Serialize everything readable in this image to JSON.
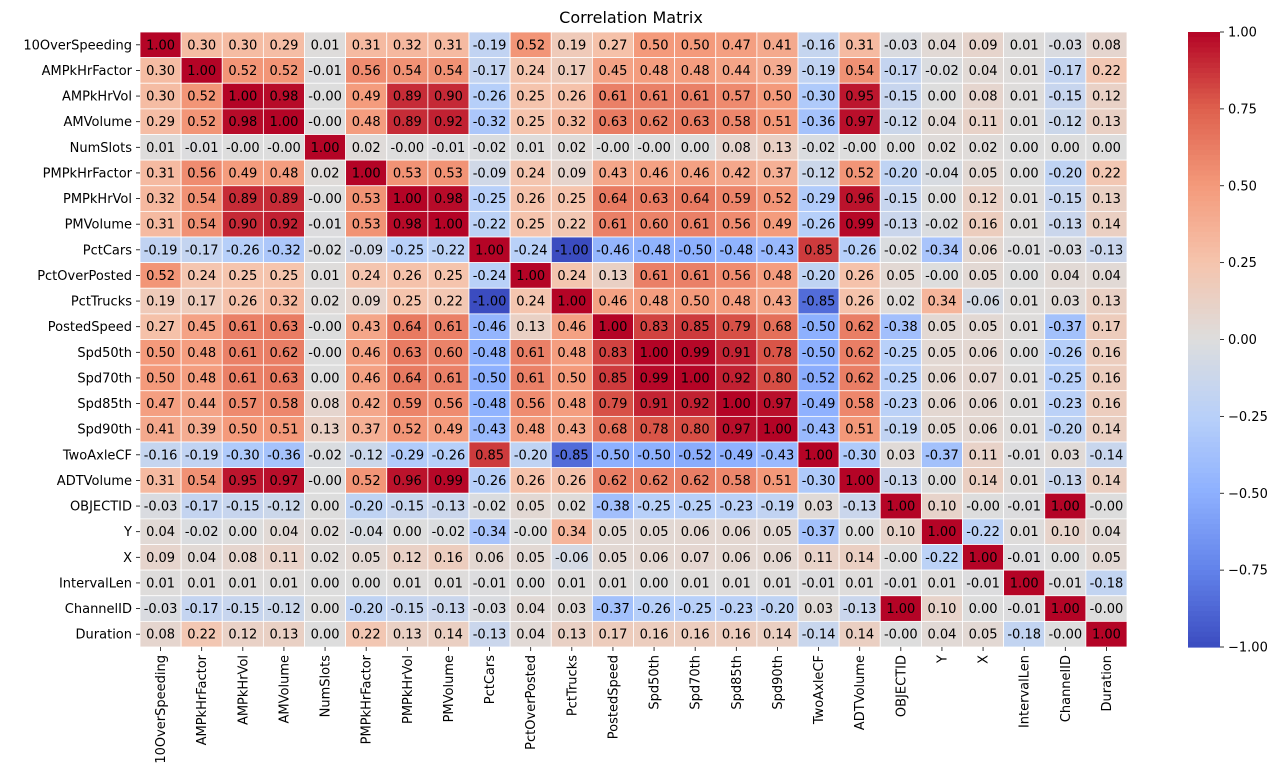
{
  "chart_data": {
    "type": "heatmap",
    "title": "Correlation Matrix",
    "colormap": "coolwarm",
    "vmin": -1.0,
    "vmax": 1.0,
    "cell_border_color": "#ffffff",
    "value_format": "0.00",
    "labels": [
      "10OverSpeeding",
      "AMPkHrFactor",
      "AMPkHrVol",
      "AMVolume",
      "NumSlots",
      "PMPkHrFactor",
      "PMPkHrVol",
      "PMVolume",
      "PctCars",
      "PctOverPosted",
      "PctTrucks",
      "PostedSpeed",
      "Spd50th",
      "Spd70th",
      "Spd85th",
      "Spd90th",
      "TwoAxleCF",
      "ADTVolume",
      "OBJECTID",
      "Y",
      "X",
      "IntervalLen",
      "ChannelID",
      "Duration"
    ],
    "colorbar_ticks": [
      "1.00",
      "0.75",
      "0.50",
      "0.25",
      "0.00",
      "−0.25",
      "−0.50",
      "−0.75",
      "−1.00"
    ],
    "colorbar_tick_values": [
      1.0,
      0.75,
      0.5,
      0.25,
      0.0,
      -0.25,
      -0.5,
      -0.75,
      -1.0
    ],
    "values": [
      [
        "1.00",
        "0.30",
        "0.30",
        "0.29",
        "0.01",
        "0.31",
        "0.32",
        "0.31",
        "-0.19",
        "0.52",
        "0.19",
        "0.27",
        "0.50",
        "0.50",
        "0.47",
        "0.41",
        "-0.16",
        "0.31",
        "-0.03",
        "0.04",
        "0.09",
        "0.01",
        "-0.03",
        "0.08"
      ],
      [
        "0.30",
        "1.00",
        "0.52",
        "0.52",
        "-0.01",
        "0.56",
        "0.54",
        "0.54",
        "-0.17",
        "0.24",
        "0.17",
        "0.45",
        "0.48",
        "0.48",
        "0.44",
        "0.39",
        "-0.19",
        "0.54",
        "-0.17",
        "-0.02",
        "0.04",
        "0.01",
        "-0.17",
        "0.22"
      ],
      [
        "0.30",
        "0.52",
        "1.00",
        "0.98",
        "-0.00",
        "0.49",
        "0.89",
        "0.90",
        "-0.26",
        "0.25",
        "0.26",
        "0.61",
        "0.61",
        "0.61",
        "0.57",
        "0.50",
        "-0.30",
        "0.95",
        "-0.15",
        "0.00",
        "0.08",
        "0.01",
        "-0.15",
        "0.12"
      ],
      [
        "0.29",
        "0.52",
        "0.98",
        "1.00",
        "-0.00",
        "0.48",
        "0.89",
        "0.92",
        "-0.32",
        "0.25",
        "0.32",
        "0.63",
        "0.62",
        "0.63",
        "0.58",
        "0.51",
        "-0.36",
        "0.97",
        "-0.12",
        "0.04",
        "0.11",
        "0.01",
        "-0.12",
        "0.13"
      ],
      [
        "0.01",
        "-0.01",
        "-0.00",
        "-0.00",
        "1.00",
        "0.02",
        "-0.00",
        "-0.01",
        "-0.02",
        "0.01",
        "0.02",
        "-0.00",
        "-0.00",
        "0.00",
        "0.08",
        "0.13",
        "-0.02",
        "-0.00",
        "0.00",
        "0.02",
        "0.02",
        "0.00",
        "0.00",
        "0.00"
      ],
      [
        "0.31",
        "0.56",
        "0.49",
        "0.48",
        "0.02",
        "1.00",
        "0.53",
        "0.53",
        "-0.09",
        "0.24",
        "0.09",
        "0.43",
        "0.46",
        "0.46",
        "0.42",
        "0.37",
        "-0.12",
        "0.52",
        "-0.20",
        "-0.04",
        "0.05",
        "0.00",
        "-0.20",
        "0.22"
      ],
      [
        "0.32",
        "0.54",
        "0.89",
        "0.89",
        "-0.00",
        "0.53",
        "1.00",
        "0.98",
        "-0.25",
        "0.26",
        "0.25",
        "0.64",
        "0.63",
        "0.64",
        "0.59",
        "0.52",
        "-0.29",
        "0.96",
        "-0.15",
        "0.00",
        "0.12",
        "0.01",
        "-0.15",
        "0.13"
      ],
      [
        "0.31",
        "0.54",
        "0.90",
        "0.92",
        "-0.01",
        "0.53",
        "0.98",
        "1.00",
        "-0.22",
        "0.25",
        "0.22",
        "0.61",
        "0.60",
        "0.61",
        "0.56",
        "0.49",
        "-0.26",
        "0.99",
        "-0.13",
        "-0.02",
        "0.16",
        "0.01",
        "-0.13",
        "0.14"
      ],
      [
        "-0.19",
        "-0.17",
        "-0.26",
        "-0.32",
        "-0.02",
        "-0.09",
        "-0.25",
        "-0.22",
        "1.00",
        "-0.24",
        "-1.00",
        "-0.46",
        "-0.48",
        "-0.50",
        "-0.48",
        "-0.43",
        "0.85",
        "-0.26",
        "-0.02",
        "-0.34",
        "0.06",
        "-0.01",
        "-0.03",
        "-0.13"
      ],
      [
        "0.52",
        "0.24",
        "0.25",
        "0.25",
        "0.01",
        "0.24",
        "0.26",
        "0.25",
        "-0.24",
        "1.00",
        "0.24",
        "0.13",
        "0.61",
        "0.61",
        "0.56",
        "0.48",
        "-0.20",
        "0.26",
        "0.05",
        "-0.00",
        "0.05",
        "0.00",
        "0.04",
        "0.04"
      ],
      [
        "0.19",
        "0.17",
        "0.26",
        "0.32",
        "0.02",
        "0.09",
        "0.25",
        "0.22",
        "-1.00",
        "0.24",
        "1.00",
        "0.46",
        "0.48",
        "0.50",
        "0.48",
        "0.43",
        "-0.85",
        "0.26",
        "0.02",
        "0.34",
        "-0.06",
        "0.01",
        "0.03",
        "0.13"
      ],
      [
        "0.27",
        "0.45",
        "0.61",
        "0.63",
        "-0.00",
        "0.43",
        "0.64",
        "0.61",
        "-0.46",
        "0.13",
        "0.46",
        "1.00",
        "0.83",
        "0.85",
        "0.79",
        "0.68",
        "-0.50",
        "0.62",
        "-0.38",
        "0.05",
        "0.05",
        "0.01",
        "-0.37",
        "0.17"
      ],
      [
        "0.50",
        "0.48",
        "0.61",
        "0.62",
        "-0.00",
        "0.46",
        "0.63",
        "0.60",
        "-0.48",
        "0.61",
        "0.48",
        "0.83",
        "1.00",
        "0.99",
        "0.91",
        "0.78",
        "-0.50",
        "0.62",
        "-0.25",
        "0.05",
        "0.06",
        "0.00",
        "-0.26",
        "0.16"
      ],
      [
        "0.50",
        "0.48",
        "0.61",
        "0.63",
        "0.00",
        "0.46",
        "0.64",
        "0.61",
        "-0.50",
        "0.61",
        "0.50",
        "0.85",
        "0.99",
        "1.00",
        "0.92",
        "0.80",
        "-0.52",
        "0.62",
        "-0.25",
        "0.06",
        "0.07",
        "0.01",
        "-0.25",
        "0.16"
      ],
      [
        "0.47",
        "0.44",
        "0.57",
        "0.58",
        "0.08",
        "0.42",
        "0.59",
        "0.56",
        "-0.48",
        "0.56",
        "0.48",
        "0.79",
        "0.91",
        "0.92",
        "1.00",
        "0.97",
        "-0.49",
        "0.58",
        "-0.23",
        "0.06",
        "0.06",
        "0.01",
        "-0.23",
        "0.16"
      ],
      [
        "0.41",
        "0.39",
        "0.50",
        "0.51",
        "0.13",
        "0.37",
        "0.52",
        "0.49",
        "-0.43",
        "0.48",
        "0.43",
        "0.68",
        "0.78",
        "0.80",
        "0.97",
        "1.00",
        "-0.43",
        "0.51",
        "-0.19",
        "0.05",
        "0.06",
        "0.01",
        "-0.20",
        "0.14"
      ],
      [
        "-0.16",
        "-0.19",
        "-0.30",
        "-0.36",
        "-0.02",
        "-0.12",
        "-0.29",
        "-0.26",
        "0.85",
        "-0.20",
        "-0.85",
        "-0.50",
        "-0.50",
        "-0.52",
        "-0.49",
        "-0.43",
        "1.00",
        "-0.30",
        "0.03",
        "-0.37",
        "0.11",
        "-0.01",
        "0.03",
        "-0.14"
      ],
      [
        "0.31",
        "0.54",
        "0.95",
        "0.97",
        "-0.00",
        "0.52",
        "0.96",
        "0.99",
        "-0.26",
        "0.26",
        "0.26",
        "0.62",
        "0.62",
        "0.62",
        "0.58",
        "0.51",
        "-0.30",
        "1.00",
        "-0.13",
        "0.00",
        "0.14",
        "0.01",
        "-0.13",
        "0.14"
      ],
      [
        "-0.03",
        "-0.17",
        "-0.15",
        "-0.12",
        "0.00",
        "-0.20",
        "-0.15",
        "-0.13",
        "-0.02",
        "0.05",
        "0.02",
        "-0.38",
        "-0.25",
        "-0.25",
        "-0.23",
        "-0.19",
        "0.03",
        "-0.13",
        "1.00",
        "0.10",
        "-0.00",
        "-0.01",
        "1.00",
        "-0.00"
      ],
      [
        "0.04",
        "-0.02",
        "0.00",
        "0.04",
        "0.02",
        "-0.04",
        "0.00",
        "-0.02",
        "-0.34",
        "-0.00",
        "0.34",
        "0.05",
        "0.05",
        "0.06",
        "0.06",
        "0.05",
        "-0.37",
        "0.00",
        "0.10",
        "1.00",
        "-0.22",
        "0.01",
        "0.10",
        "0.04"
      ],
      [
        "0.09",
        "0.04",
        "0.08",
        "0.11",
        "0.02",
        "0.05",
        "0.12",
        "0.16",
        "0.06",
        "0.05",
        "-0.06",
        "0.05",
        "0.06",
        "0.07",
        "0.06",
        "0.06",
        "0.11",
        "0.14",
        "-0.00",
        "-0.22",
        "1.00",
        "-0.01",
        "0.00",
        "0.05"
      ],
      [
        "0.01",
        "0.01",
        "0.01",
        "0.01",
        "0.00",
        "0.00",
        "0.01",
        "0.01",
        "-0.01",
        "0.00",
        "0.01",
        "0.01",
        "0.00",
        "0.01",
        "0.01",
        "0.01",
        "-0.01",
        "0.01",
        "-0.01",
        "0.01",
        "-0.01",
        "1.00",
        "-0.01",
        "-0.18"
      ],
      [
        "-0.03",
        "-0.17",
        "-0.15",
        "-0.12",
        "0.00",
        "-0.20",
        "-0.15",
        "-0.13",
        "-0.03",
        "0.04",
        "0.03",
        "-0.37",
        "-0.26",
        "-0.25",
        "-0.23",
        "-0.20",
        "0.03",
        "-0.13",
        "1.00",
        "0.10",
        "0.00",
        "-0.01",
        "1.00",
        "-0.00"
      ],
      [
        "0.08",
        "0.22",
        "0.12",
        "0.13",
        "0.00",
        "0.22",
        "0.13",
        "0.14",
        "-0.13",
        "0.04",
        "0.13",
        "0.17",
        "0.16",
        "0.16",
        "0.16",
        "0.14",
        "-0.14",
        "0.14",
        "-0.00",
        "0.04",
        "0.05",
        "-0.18",
        "-0.00",
        "1.00"
      ]
    ]
  }
}
